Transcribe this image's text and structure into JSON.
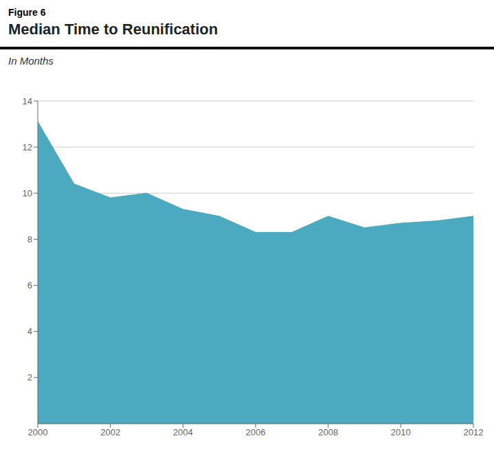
{
  "chart_data": {
    "type": "area",
    "title": "Median Time to Reunification",
    "subtitle": "In Months",
    "annotations": [
      "Figure 6"
    ],
    "x": [
      2000,
      2001,
      2002,
      2003,
      2004,
      2005,
      2006,
      2007,
      2008,
      2009,
      2010,
      2011,
      2012
    ],
    "values": [
      13.1,
      10.4,
      9.8,
      10.0,
      9.3,
      9.0,
      8.3,
      8.3,
      9.0,
      8.5,
      8.7,
      8.8,
      9.0
    ],
    "color": "#4baabf",
    "xlim": [
      2000,
      2012
    ],
    "ylim": [
      0,
      14
    ],
    "xticks": [
      2000,
      2002,
      2004,
      2006,
      2008,
      2010,
      2012
    ],
    "yticks": [
      2,
      4,
      6,
      8,
      10,
      12,
      14
    ],
    "grid": true
  }
}
